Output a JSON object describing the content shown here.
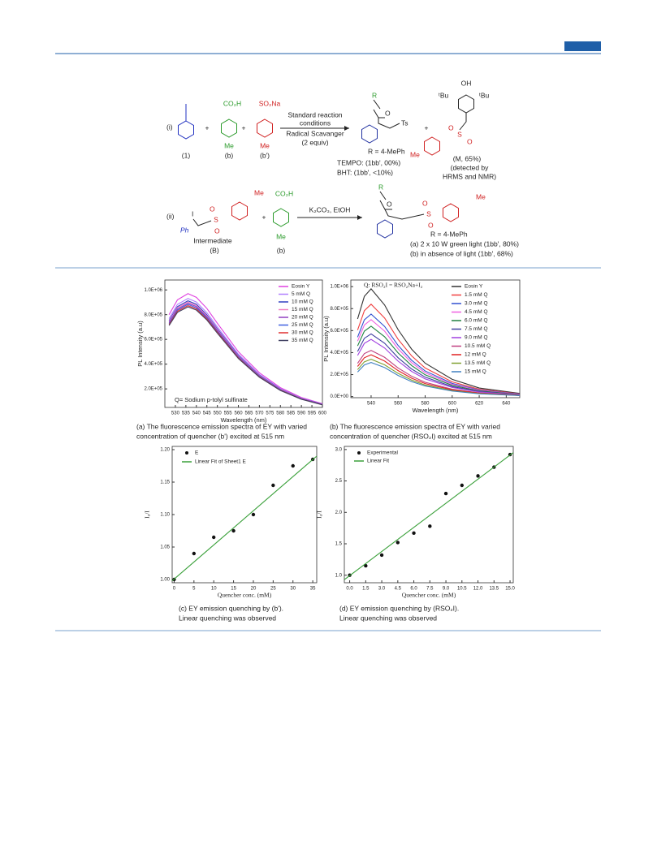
{
  "scheme": {
    "i": {
      "label": "(i)",
      "c1": "(1)",
      "plus1": "+",
      "b_group": "CO₂H",
      "b_me": "Me",
      "b": "(b)",
      "plus2": "+",
      "bp_group": "SO₂Na",
      "bp_me": "Me",
      "bp": "(b')",
      "cond1": "Standard reaction",
      "cond2": "conditions",
      "cond3": "Radical Scavanger",
      "cond4": "(2 equiv)",
      "p_r": "R",
      "p_o": "O",
      "p_ts": "Ts",
      "p_def": "R = 4-MePh",
      "tempo": "TEMPO: (1bb', 00%)",
      "bht": "BHT: (1bb', <10%)",
      "plus3": "+",
      "m_oh": "OH",
      "m_tbu1": "ᵗBu",
      "m_tbu2": "ᵗBu",
      "m_s": "S",
      "m_o1": "O",
      "m_o2": "O",
      "m_me": "Me",
      "m": "(M, 65%)",
      "m_note1": "(detected by",
      "m_note2": "HRMS and NMR)"
    },
    "ii": {
      "label": "(ii)",
      "i_atom": "I",
      "ph": "Ph",
      "s": "S",
      "o1": "O",
      "o2": "O",
      "me1": "Me",
      "int": "Intermediate",
      "B": "(B)",
      "plus": "+",
      "b_group": "CO₂H",
      "b_me": "Me",
      "b": "(b)",
      "cond": "K₂CO₃, EtOH",
      "p_r": "R",
      "p_o": "O",
      "p_s": "S",
      "p_o1": "O",
      "p_o2": "O",
      "p_me": "Me",
      "p_def": "R = 4-MePh",
      "a": "(a) 2 x 10 W green light (1bb', 80%)",
      "bcond": "(b) in absence of light (1bb', 68%)"
    }
  },
  "chart_data": [
    {
      "type": "line",
      "xlabel": "Wavelength (nm)",
      "ylabel": "PL Intensity (a.u)",
      "annotation": "Q= Sodium p-tolyl sulfinate",
      "caption": [
        "(a) The fluorescence emission spectra of EY with varied",
        "concentration of quencher (b') excited at 515 nm"
      ],
      "x": [
        527,
        531,
        536,
        540,
        545,
        550,
        560,
        570,
        580,
        590,
        600
      ],
      "xlim": [
        525,
        600
      ],
      "xticks": [
        530,
        535,
        540,
        545,
        550,
        555,
        560,
        565,
        570,
        575,
        580,
        585,
        590,
        595,
        600
      ],
      "ylim": [
        50000,
        1080000
      ],
      "yticks": [
        {
          "value": 200000,
          "label": "2.0E+05"
        },
        {
          "value": 400000,
          "label": "4.0E+05"
        },
        {
          "value": 600000,
          "label": "6.0E+05"
        },
        {
          "value": 800000,
          "label": "8.0E+05"
        },
        {
          "value": 1000000,
          "label": "1.0E+06"
        }
      ],
      "legend": "upper right",
      "series": [
        {
          "name": "Eosin Y",
          "color": "#e040e0",
          "values": [
            800000,
            920000,
            970000,
            940000,
            850000,
            730000,
            500000,
            330000,
            210000,
            130000,
            80000
          ]
        },
        {
          "name": "5 mM Q",
          "color": "#b080ff",
          "values": [
            768000,
            883000,
            931000,
            902000,
            816000,
            701000,
            480000,
            317000,
            202000,
            125000,
            77000
          ]
        },
        {
          "name": "10 mM Q",
          "color": "#3040c0",
          "values": [
            752000,
            865000,
            912000,
            884000,
            799000,
            686000,
            470000,
            310000,
            197000,
            122000,
            75000
          ]
        },
        {
          "name": "15 mM Q",
          "color": "#f080c0",
          "values": [
            744000,
            856000,
            902000,
            874000,
            791000,
            679000,
            465000,
            307000,
            195000,
            121000,
            74000
          ]
        },
        {
          "name": "20 mM Q",
          "color": "#9040c0",
          "values": [
            736000,
            846000,
            892000,
            865000,
            782000,
            672000,
            460000,
            304000,
            193000,
            120000,
            74000
          ]
        },
        {
          "name": "25 mM Q",
          "color": "#4060e0",
          "values": [
            728000,
            837000,
            883000,
            855000,
            774000,
            664000,
            455000,
            300000,
            191000,
            118000,
            73000
          ]
        },
        {
          "name": "30 mM Q",
          "color": "#e03030",
          "values": [
            720000,
            828000,
            873000,
            846000,
            765000,
            657000,
            450000,
            297000,
            189000,
            117000,
            72000
          ]
        },
        {
          "name": "35 mM Q",
          "color": "#404060",
          "values": [
            712000,
            819000,
            863000,
            837000,
            757000,
            650000,
            445000,
            294000,
            187000,
            116000,
            71000
          ]
        }
      ]
    },
    {
      "type": "line",
      "xlabel": "Wavelength (nm)",
      "ylabel": "PL Intensity (a.u)",
      "annotation": "Q: RSO₂I = RSO₂Na+I₂",
      "caption": [
        "(b) The fluorescence emission spectra of EY with varied",
        "concentration of quencher (RSO₂I) excited at 515 nm"
      ],
      "x": [
        530,
        535,
        540,
        550,
        560,
        570,
        580,
        600,
        620,
        650
      ],
      "xlim": [
        525,
        650
      ],
      "xticks": [
        540,
        560,
        580,
        600,
        620,
        640
      ],
      "ylim": [
        -10000,
        1060000
      ],
      "yticks": [
        {
          "value": 0,
          "label": "0.0E+00"
        },
        {
          "value": 200000,
          "label": "2.0E+05"
        },
        {
          "value": 400000,
          "label": "4.0E+05"
        },
        {
          "value": 600000,
          "label": "6.0E+05"
        },
        {
          "value": 800000,
          "label": "8.0E+05"
        },
        {
          "value": 1000000,
          "label": "1.0E+06"
        }
      ],
      "legend": "upper right",
      "series": [
        {
          "name": "Eosin Y",
          "color": "#333333",
          "values": [
            706000,
            911000,
            980000,
            833000,
            608000,
            431000,
            304000,
            157000,
            78000,
            29000
          ]
        },
        {
          "name": "1.5 mM Q",
          "color": "#f04040",
          "values": [
            605000,
            781000,
            840000,
            714000,
            521000,
            370000,
            260000,
            134000,
            67000,
            25000
          ]
        },
        {
          "name": "3.0 mM Q",
          "color": "#3050d0",
          "values": [
            540000,
            698000,
            750000,
            638000,
            465000,
            330000,
            233000,
            120000,
            60000,
            23000
          ]
        },
        {
          "name": "4.5 mM Q",
          "color": "#f060e0",
          "values": [
            504000,
            651000,
            700000,
            595000,
            434000,
            308000,
            217000,
            112000,
            56000,
            21000
          ]
        },
        {
          "name": "6.0 mM Q",
          "color": "#208040",
          "values": [
            461000,
            595000,
            640000,
            544000,
            397000,
            282000,
            198000,
            102000,
            51000,
            19000
          ]
        },
        {
          "name": "7.5 mM Q",
          "color": "#4040a0",
          "values": [
            410000,
            530000,
            570000,
            485000,
            353000,
            251000,
            177000,
            91000,
            46000,
            17000
          ]
        },
        {
          "name": "9.0 mM Q",
          "color": "#a040e0",
          "values": [
            374000,
            484000,
            520000,
            442000,
            322000,
            229000,
            161000,
            83000,
            42000,
            16000
          ]
        },
        {
          "name": "10.5 mM Q",
          "color": "#c04080",
          "values": [
            302000,
            391000,
            420000,
            357000,
            260000,
            185000,
            130000,
            67000,
            34000,
            13000
          ]
        },
        {
          "name": "12 mM Q",
          "color": "#e02020",
          "values": [
            274000,
            353000,
            380000,
            323000,
            236000,
            167000,
            118000,
            61000,
            30000,
            11000
          ]
        },
        {
          "name": "13.5 mM Q",
          "color": "#80a030",
          "values": [
            245000,
            316000,
            340000,
            289000,
            211000,
            150000,
            105000,
            54000,
            27000,
            10000
          ]
        },
        {
          "name": "15 mM Q",
          "color": "#4080c0",
          "values": [
            223000,
            288000,
            310000,
            264000,
            192000,
            136000,
            96000,
            50000,
            25000,
            9000
          ]
        }
      ]
    },
    {
      "type": "scatter",
      "xlabel": "Quencher conc. (mM)",
      "ylabel": "I₀/I",
      "caption": [
        "(c) EY emission quenching by (b').",
        "Linear quenching was observed"
      ],
      "xlim": [
        -0.5,
        36
      ],
      "xticks": [
        0,
        5,
        10,
        15,
        20,
        25,
        30,
        35
      ],
      "ylim": [
        0.995,
        1.205
      ],
      "yticks": [
        {
          "value": 1,
          "label": "1.00"
        },
        {
          "value": 1.05,
          "label": "1.05"
        },
        {
          "value": 1.1,
          "label": "1.10"
        },
        {
          "value": 1.15,
          "label": "1.15"
        },
        {
          "value": 1.2,
          "label": "1.20"
        }
      ],
      "legend": "upper left",
      "series": [
        {
          "name": "E",
          "type": "scatter",
          "color": "#111111",
          "x": [
            0,
            5,
            10,
            15,
            20,
            25,
            30,
            35
          ],
          "values": [
            1.0,
            1.04,
            1.065,
            1.075,
            1.1,
            1.145,
            1.175,
            1.185
          ]
        },
        {
          "name": "Linear Fit of Sheet1 E",
          "type": "line",
          "color": "#3aa03a",
          "x": [
            -0.5,
            36
          ],
          "values": [
            0.998,
            1.19
          ]
        }
      ]
    },
    {
      "type": "scatter",
      "xlabel": "Quencher conc. (mM)",
      "ylabel": "I₀/I",
      "caption": [
        "(d) EY emission quenching by (RSO₂I).",
        "Linear quenching was observed"
      ],
      "xlim": [
        -0.5,
        15.3
      ],
      "xticks": [
        {
          "value": 0,
          "label": "0.0"
        },
        1.5,
        {
          "value": 3,
          "label": "3.0"
        },
        4.5,
        {
          "value": 6,
          "label": "6.0"
        },
        7.5,
        {
          "value": 9,
          "label": "9.0"
        },
        10.5,
        {
          "value": 12,
          "label": "12.0"
        },
        13.5,
        {
          "value": 15,
          "label": "15.0"
        }
      ],
      "ylim": [
        0.88,
        3.05
      ],
      "yticks": [
        {
          "value": 1,
          "label": "1.0"
        },
        1.5,
        {
          "value": 2,
          "label": "2.0"
        },
        2.5,
        {
          "value": 3,
          "label": "3.0"
        }
      ],
      "legend": "upper left",
      "series": [
        {
          "name": "Experimental",
          "type": "scatter",
          "color": "#111111",
          "x": [
            0,
            1.5,
            3,
            4.5,
            6,
            7.5,
            9,
            10.5,
            12,
            13.5,
            15
          ],
          "values": [
            1.0,
            1.15,
            1.32,
            1.52,
            1.67,
            1.78,
            2.3,
            2.43,
            2.58,
            2.72,
            2.92
          ]
        },
        {
          "name": "Linear Fit",
          "type": "line",
          "color": "#3aa03a",
          "x": [
            -0.5,
            15.3
          ],
          "values": [
            0.93,
            2.95
          ]
        }
      ]
    }
  ]
}
